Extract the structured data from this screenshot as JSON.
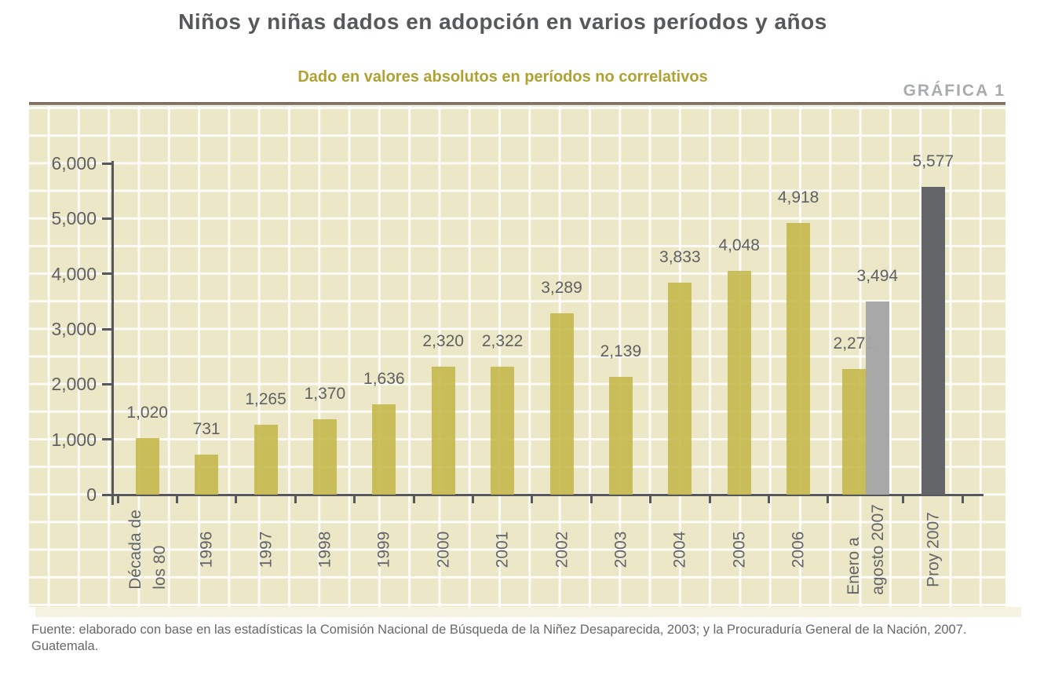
{
  "header": {
    "title": "Niños y niñas dados en adopción en varios períodos y años",
    "subtitle": "Dado en valores absolutos en períodos no correlativos",
    "figure_label": "GRÁFICA 1"
  },
  "source": {
    "line1": "Fuente: elaborado con base en las estadísticas la Comisión Nacional de Búsqueda de la Niñez Desaparecida, 2003; y la Procuraduría General de la Nación, 2007.",
    "line2": "Guatemala."
  },
  "chart_data": {
    "type": "bar",
    "title": "Niños y niñas dados en adopción en varios períodos y años",
    "subtitle": "Dado en valores absolutos en períodos no correlativos",
    "figure_label": "GRÁFICA 1",
    "xlabel": "",
    "ylabel": "",
    "ylim": [
      0,
      6000
    ],
    "grid": true,
    "legend": "none",
    "y_ticks": [
      {
        "value": 0,
        "label": "0"
      },
      {
        "value": 1000,
        "label": "1,000"
      },
      {
        "value": 2000,
        "label": "2,000"
      },
      {
        "value": 3000,
        "label": "3,000"
      },
      {
        "value": 4000,
        "label": "4,000"
      },
      {
        "value": 5000,
        "label": "5,000"
      },
      {
        "value": 6000,
        "label": "6,000"
      }
    ],
    "points": [
      {
        "category_lines": [
          "Década de",
          "los 80"
        ],
        "bars": [
          {
            "value": 1020,
            "label": "1,020",
            "color": "olive"
          }
        ]
      },
      {
        "category_lines": [
          "1996"
        ],
        "bars": [
          {
            "value": 731,
            "label": "731",
            "color": "olive"
          }
        ]
      },
      {
        "category_lines": [
          "1997"
        ],
        "bars": [
          {
            "value": 1265,
            "label": "1,265",
            "color": "olive"
          }
        ]
      },
      {
        "category_lines": [
          "1998"
        ],
        "bars": [
          {
            "value": 1370,
            "label": "1,370",
            "color": "olive"
          }
        ]
      },
      {
        "category_lines": [
          "1999"
        ],
        "bars": [
          {
            "value": 1636,
            "label": "1,636",
            "color": "olive"
          }
        ]
      },
      {
        "category_lines": [
          "2000"
        ],
        "bars": [
          {
            "value": 2320,
            "label": "2,320",
            "color": "olive"
          }
        ]
      },
      {
        "category_lines": [
          "2001"
        ],
        "bars": [
          {
            "value": 2322,
            "label": "2,322",
            "color": "olive"
          }
        ]
      },
      {
        "category_lines": [
          "2002"
        ],
        "bars": [
          {
            "value": 3289,
            "label": "3,289",
            "color": "olive"
          }
        ]
      },
      {
        "category_lines": [
          "2003"
        ],
        "bars": [
          {
            "value": 2139,
            "label": "2,139",
            "color": "olive"
          }
        ]
      },
      {
        "category_lines": [
          "2004"
        ],
        "bars": [
          {
            "value": 3833,
            "label": "3,833",
            "color": "olive"
          }
        ]
      },
      {
        "category_lines": [
          "2005"
        ],
        "bars": [
          {
            "value": 4048,
            "label": "4,048",
            "color": "olive"
          }
        ]
      },
      {
        "category_lines": [
          "2006"
        ],
        "bars": [
          {
            "value": 4918,
            "label": "4,918",
            "color": "olive"
          }
        ]
      },
      {
        "category_lines": [
          "Enero a",
          "agosto 2007"
        ],
        "bars": [
          {
            "value": 2271,
            "label": "2,271",
            "color": "olive"
          },
          {
            "value": 3494,
            "label": "3,494",
            "color": "light_gray"
          }
        ]
      },
      {
        "category_lines": [
          "Proy 2007"
        ],
        "bars": [
          {
            "value": 5577,
            "label": "5,577",
            "color": "dark_gray"
          }
        ]
      }
    ],
    "colors": {
      "olive": "#c5b84c",
      "light_gray": "#a4a5a8",
      "dark_gray": "#646568",
      "plot_background": "#ece7c7",
      "grid": "#ffffff",
      "axis": "#57585b",
      "title": "#57585b",
      "subtitle": "#afa232",
      "figure_label": "#a9abae",
      "top_rule": "#85725f"
    }
  }
}
